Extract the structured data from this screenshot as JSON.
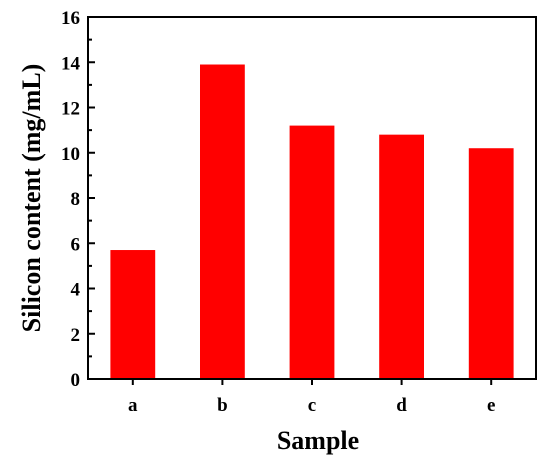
{
  "chart_data": {
    "type": "bar",
    "title": "",
    "xlabel": "Sample",
    "ylabel": "Silicon content (mg/mL)",
    "categories": [
      "a",
      "b",
      "c",
      "d",
      "e"
    ],
    "values": [
      5.7,
      13.9,
      11.2,
      10.8,
      10.2
    ],
    "ylim": [
      0,
      16
    ],
    "yticks": [
      0,
      2,
      4,
      6,
      8,
      10,
      12,
      14,
      16
    ],
    "grid": false,
    "legend": "none",
    "bar_color": "#ff0000",
    "axis_color": "#000000"
  }
}
